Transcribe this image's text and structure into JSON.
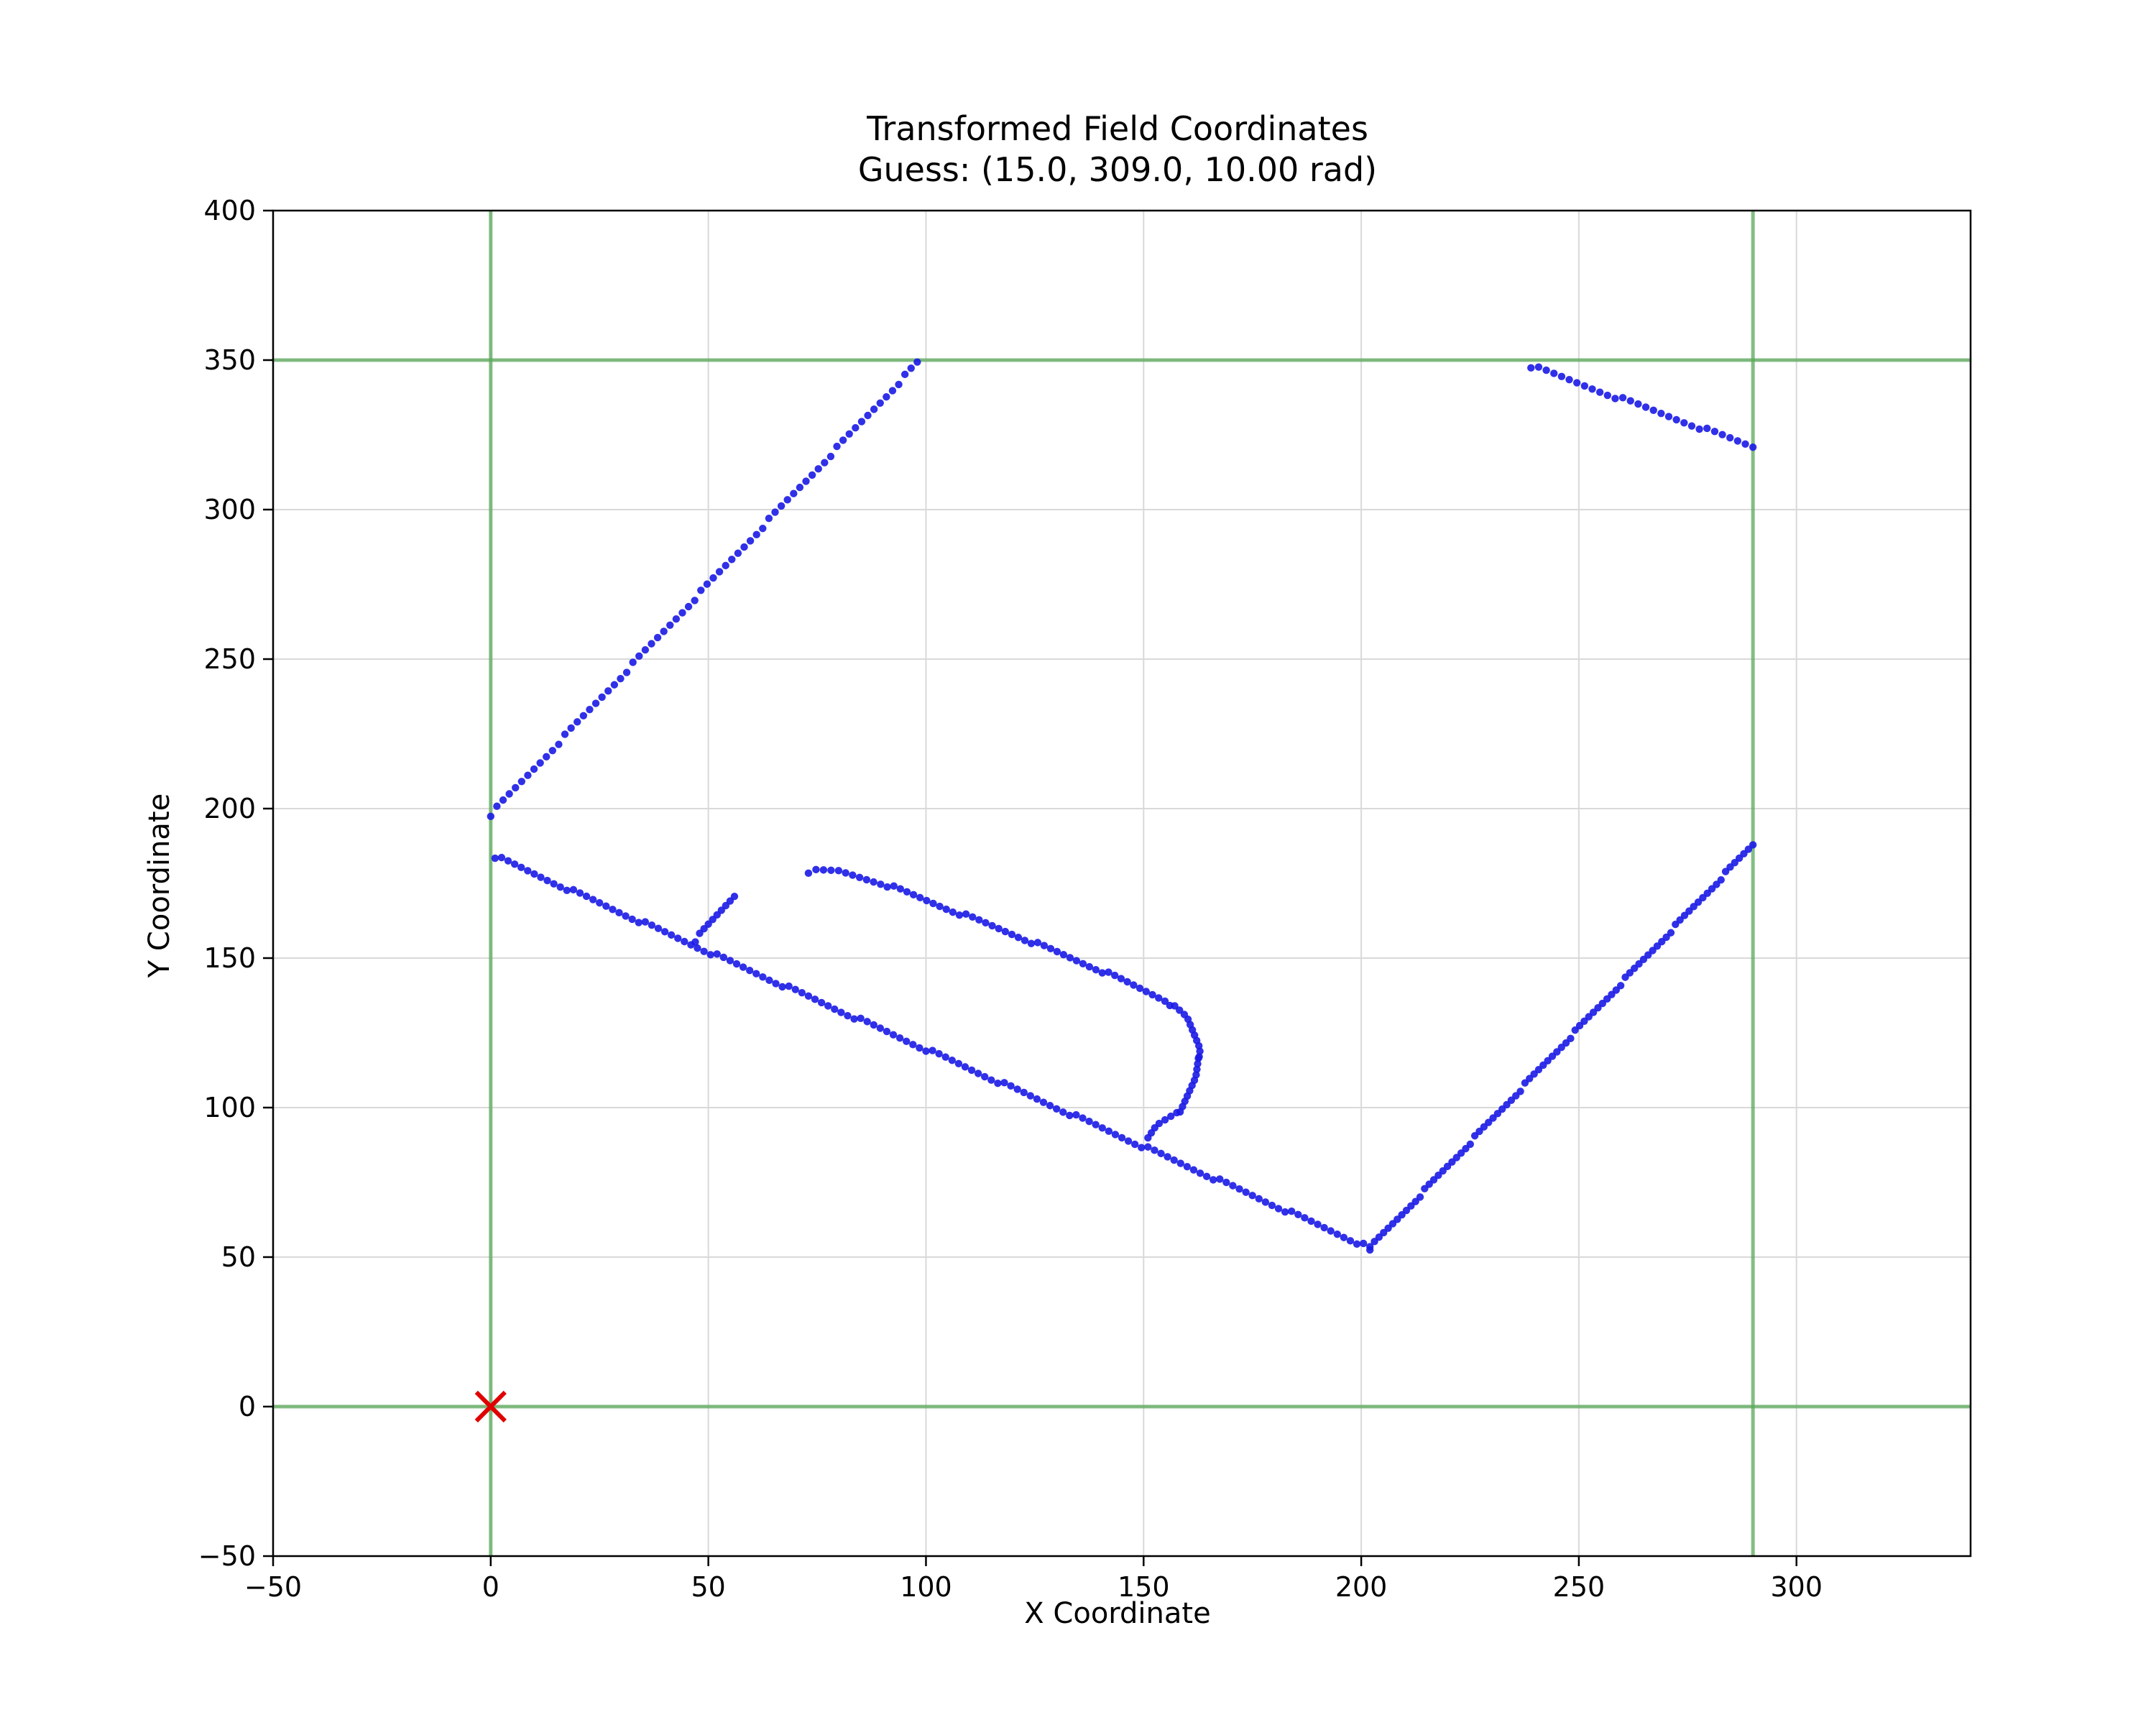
{
  "chart_data": {
    "type": "scatter",
    "title": "Transformed Field Coordinates",
    "subtitle": "Guess: (15.0, 309.0, 10.00 rad)",
    "xlabel": "X Coordinate",
    "ylabel": "Y Coordinate",
    "xlim": [
      -50,
      340
    ],
    "ylim": [
      -50,
      400
    ],
    "xticks": [
      -50,
      0,
      50,
      100,
      150,
      200,
      250,
      300
    ],
    "yticks": [
      -50,
      0,
      50,
      100,
      150,
      200,
      250,
      300,
      350,
      400
    ],
    "xtick_labels": [
      "−50",
      "0",
      "50",
      "100",
      "150",
      "200",
      "250",
      "300"
    ],
    "ytick_labels": [
      "−50",
      "0",
      "50",
      "100",
      "150",
      "200",
      "250",
      "300",
      "350",
      "400"
    ],
    "grid": true,
    "colors": {
      "points": "#1a1ae6",
      "field_lines": "#5aa85a",
      "origin_marker": "#e00000",
      "grid": "#d9d9d9"
    },
    "field_lines": {
      "vertical_x": [
        0,
        290
      ],
      "horizontal_y": [
        0,
        350
      ]
    },
    "origin_marker": {
      "x": 0,
      "y": 0,
      "symbol": "x"
    },
    "series": [
      {
        "segments": [
          {
            "from": [
              0,
              198
            ],
            "to": [
              98,
              349
            ],
            "n": 70
          },
          {
            "from": [
              1,
              184
            ],
            "to": [
              202,
              53
            ],
            "n": 135
          },
          {
            "from": [
              202,
              53
            ],
            "to": [
              290,
              188
            ],
            "n": 85
          },
          {
            "from": [
              47,
              156
            ],
            "to": [
              56,
              171
            ],
            "n": 10
          },
          {
            "from": [
              239,
              348
            ],
            "to": [
              290,
              321
            ],
            "n": 30
          },
          {
            "path": [
              [
                73,
                179
              ],
              [
                80,
                179
              ],
              [
                90,
                175
              ],
              [
                120,
                158
              ],
              [
                140,
                146
              ],
              [
                155,
                136
              ],
              [
                160,
                130
              ],
              [
                163,
                120
              ],
              [
                162,
                110
              ],
              [
                160,
                104
              ],
              [
                158,
                98
              ],
              [
                153,
                94
              ],
              [
                151,
                90
              ]
            ],
            "n": 85
          }
        ]
      }
    ]
  }
}
